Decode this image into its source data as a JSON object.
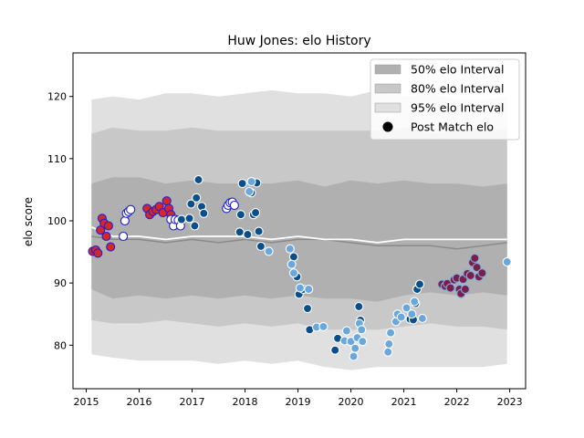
{
  "chart_data": {
    "type": "scatter",
    "title": "Huw Jones: elo History",
    "xlabel": "",
    "ylabel": "elo score",
    "xlim": [
      2014.75,
      2023.3
    ],
    "ylim": [
      73,
      127
    ],
    "x_ticks": [
      2015,
      2016,
      2017,
      2018,
      2019,
      2020,
      2021,
      2022,
      2023
    ],
    "y_ticks": [
      80,
      90,
      100,
      110,
      120
    ],
    "grid": false,
    "legend_position": "top-right",
    "legend": [
      {
        "label": "50% elo Interval",
        "kind": "band",
        "color": "#b0b0b0"
      },
      {
        "label": "80% elo Interval",
        "kind": "band",
        "color": "#c8c8c8"
      },
      {
        "label": "95% elo Interval",
        "kind": "band",
        "color": "#e0e0e0"
      },
      {
        "label": "Post Match elo",
        "kind": "marker",
        "color": "#000000"
      }
    ],
    "bands": {
      "x": [
        2015.1,
        2015.5,
        2016.0,
        2016.5,
        2017.0,
        2017.5,
        2018.0,
        2018.5,
        2019.0,
        2019.5,
        2020.0,
        2020.5,
        2021.0,
        2021.5,
        2022.0,
        2022.5,
        2022.95
      ],
      "p95_upper": [
        119.5,
        120.0,
        119.5,
        120.5,
        120.5,
        120.0,
        120.5,
        121.0,
        120.5,
        120.5,
        120.0,
        121.0,
        120.0,
        120.5,
        119.5,
        119.5,
        120.0
      ],
      "p80_upper": [
        114.0,
        115.0,
        114.5,
        114.5,
        115.0,
        114.5,
        114.5,
        114.5,
        114.5,
        114.5,
        114.5,
        114.5,
        115.0,
        114.0,
        114.5,
        114.5,
        115.0
      ],
      "p50_upper": [
        106.0,
        107.0,
        107.0,
        106.0,
        106.5,
        106.0,
        106.0,
        106.0,
        106.5,
        105.5,
        106.5,
        106.0,
        106.5,
        106.0,
        106.0,
        105.5,
        106.0
      ],
      "p50_lower": [
        89.0,
        87.5,
        88.0,
        87.5,
        88.0,
        87.5,
        88.0,
        87.5,
        88.0,
        87.5,
        87.5,
        87.0,
        88.0,
        88.5,
        88.0,
        88.5,
        88.0
      ],
      "p80_lower": [
        84.0,
        83.5,
        83.5,
        84.0,
        83.5,
        83.0,
        83.5,
        83.0,
        83.5,
        82.5,
        82.5,
        82.5,
        83.0,
        83.5,
        83.0,
        83.0,
        82.5
      ],
      "p95_lower": [
        78.5,
        78.0,
        77.5,
        77.5,
        77.5,
        77.0,
        77.5,
        77.0,
        77.5,
        76.5,
        76.0,
        76.5,
        76.5,
        76.5,
        76.5,
        76.5,
        77.0
      ],
      "median": [
        97.5,
        97.0,
        97.0,
        96.5,
        97.0,
        96.5,
        97.0,
        96.5,
        97.0,
        97.0,
        96.5,
        96.0,
        96.0,
        96.0,
        95.5,
        96.0,
        96.5
      ],
      "mean": [
        99.0,
        97.5,
        97.5,
        97.0,
        97.5,
        97.5,
        97.5,
        97.0,
        97.5,
        97.0,
        97.0,
        96.5,
        97.0,
        97.0,
        97.0,
        97.0,
        97.0
      ]
    },
    "series": [
      {
        "fill": "#d62728",
        "edge": "#1f1fd0",
        "points": [
          [
            2015.12,
            95.1
          ],
          [
            2015.18,
            95.3
          ],
          [
            2015.22,
            94.8
          ],
          [
            2015.27,
            98.5
          ],
          [
            2015.3,
            100.4
          ],
          [
            2015.34,
            99.6
          ],
          [
            2015.38,
            97.5
          ],
          [
            2015.42,
            99.2
          ],
          [
            2015.46,
            95.8
          ],
          [
            2016.15,
            102.0
          ],
          [
            2016.2,
            101.0
          ],
          [
            2016.26,
            101.5
          ],
          [
            2016.32,
            101.8
          ],
          [
            2016.38,
            102.3
          ],
          [
            2016.45,
            101.3
          ],
          [
            2016.52,
            103.2
          ],
          [
            2016.56,
            102.0
          ],
          [
            2016.6,
            101.0
          ]
        ]
      },
      {
        "fill": "#ffffff",
        "edge": "#1f1fd0",
        "points": [
          [
            2015.7,
            97.5
          ],
          [
            2015.73,
            100.0
          ],
          [
            2015.76,
            101.2
          ],
          [
            2015.8,
            101.5
          ],
          [
            2015.84,
            101.8
          ],
          [
            2016.6,
            100.2
          ],
          [
            2016.65,
            99.2
          ],
          [
            2016.68,
            100.2
          ],
          [
            2016.74,
            100.1
          ],
          [
            2016.78,
            99.2
          ],
          [
            2017.65,
            102.0
          ],
          [
            2017.68,
            102.5
          ],
          [
            2017.72,
            102.9
          ],
          [
            2017.76,
            103.0
          ],
          [
            2017.8,
            102.5
          ]
        ]
      },
      {
        "fill": "#0a4f8a",
        "edge": "#ffffff",
        "points": [
          [
            2016.8,
            100.2
          ],
          [
            2016.95,
            100.4
          ],
          [
            2016.98,
            102.7
          ],
          [
            2017.05,
            99.2
          ],
          [
            2017.08,
            103.7
          ],
          [
            2017.12,
            106.6
          ],
          [
            2017.18,
            102.3
          ],
          [
            2017.22,
            101.2
          ],
          [
            2017.9,
            98.2
          ],
          [
            2017.92,
            101.0
          ],
          [
            2017.95,
            106.0
          ],
          [
            2018.05,
            97.8
          ],
          [
            2018.12,
            104.5
          ],
          [
            2018.16,
            101.0
          ],
          [
            2018.2,
            101.3
          ],
          [
            2018.22,
            106.1
          ],
          [
            2018.26,
            98.3
          ],
          [
            2018.3,
            95.9
          ],
          [
            2018.92,
            94.2
          ],
          [
            2018.98,
            91.0
          ],
          [
            2019.02,
            88.2
          ],
          [
            2019.1,
            89.0
          ],
          [
            2019.18,
            85.9
          ],
          [
            2019.22,
            82.5
          ],
          [
            2019.75,
            81.1
          ],
          [
            2019.7,
            79.2
          ],
          [
            2020.15,
            86.2
          ],
          [
            2020.18,
            84.0
          ],
          [
            2021.12,
            84.2
          ],
          [
            2021.18,
            84.1
          ],
          [
            2021.22,
            86.7
          ],
          [
            2021.25,
            89.0
          ],
          [
            2021.3,
            89.8
          ]
        ]
      },
      {
        "fill": "#6aa8dc",
        "edge": "#ffffff",
        "points": [
          [
            2018.08,
            104.7
          ],
          [
            2018.12,
            106.3
          ],
          [
            2018.45,
            95.1
          ],
          [
            2018.85,
            95.5
          ],
          [
            2018.88,
            93.0
          ],
          [
            2018.92,
            91.6
          ],
          [
            2019.04,
            89.2
          ],
          [
            2019.2,
            89.0
          ],
          [
            2019.35,
            82.9
          ],
          [
            2019.48,
            83.0
          ],
          [
            2019.88,
            80.7
          ],
          [
            2019.92,
            82.3
          ],
          [
            2020.0,
            80.6
          ],
          [
            2020.05,
            78.2
          ],
          [
            2020.08,
            79.5
          ],
          [
            2020.12,
            81.2
          ],
          [
            2020.16,
            83.5
          ],
          [
            2020.2,
            82.5
          ],
          [
            2020.22,
            80.6
          ],
          [
            2020.7,
            78.9
          ],
          [
            2020.72,
            80.2
          ],
          [
            2020.75,
            82.0
          ],
          [
            2020.85,
            83.8
          ],
          [
            2020.88,
            85.0
          ],
          [
            2020.95,
            84.5
          ],
          [
            2021.05,
            86.0
          ],
          [
            2021.15,
            85.0
          ],
          [
            2021.2,
            87.0
          ],
          [
            2021.35,
            84.3
          ],
          [
            2022.95,
            93.4
          ]
        ]
      },
      {
        "fill": "#7a1f4a",
        "edge": "#7fb0e0",
        "points": [
          [
            2021.72,
            89.8
          ],
          [
            2021.78,
            89.5
          ],
          [
            2021.82,
            89.9
          ],
          [
            2021.88,
            89.2
          ],
          [
            2021.95,
            90.5
          ],
          [
            2022.0,
            90.8
          ],
          [
            2022.05,
            89.0
          ],
          [
            2022.08,
            88.3
          ],
          [
            2022.12,
            90.6
          ],
          [
            2022.16,
            89.0
          ],
          [
            2022.2,
            91.5
          ],
          [
            2022.26,
            91.2
          ],
          [
            2022.3,
            93.3
          ],
          [
            2022.34,
            94.0
          ],
          [
            2022.38,
            92.5
          ],
          [
            2022.42,
            91.0
          ],
          [
            2022.48,
            91.6
          ]
        ]
      }
    ]
  }
}
